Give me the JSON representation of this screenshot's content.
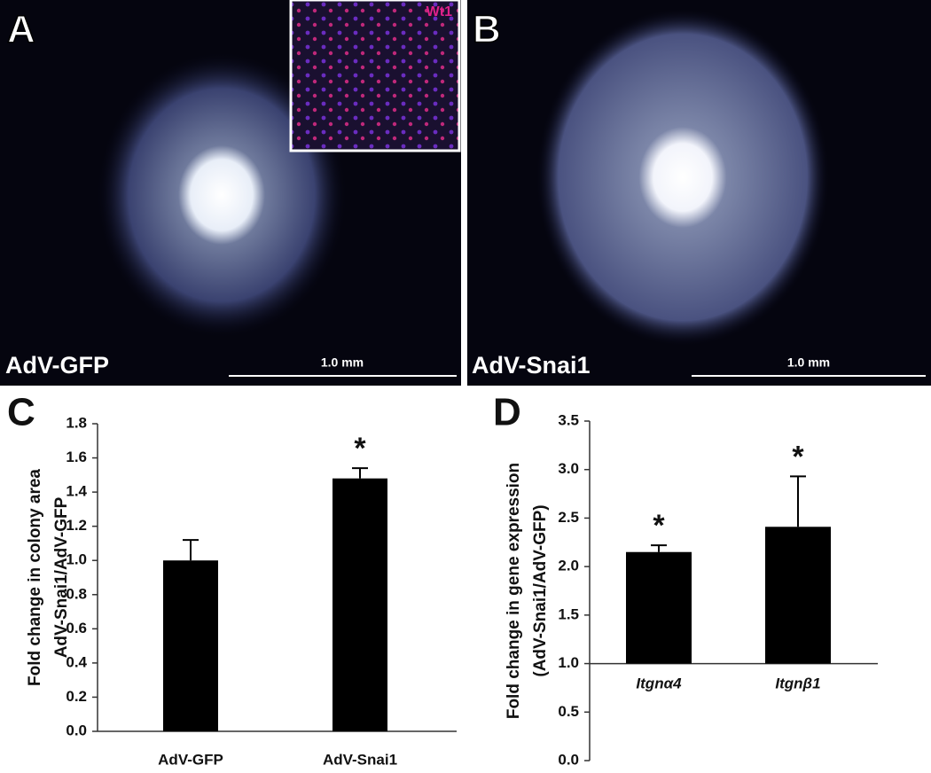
{
  "images": [
    {
      "panel": "A",
      "caption": "AdV-GFP",
      "scale_bar": "1.0 mm",
      "inset_label": "Wt1"
    },
    {
      "panel": "B",
      "caption": "AdV-Snai1",
      "scale_bar": "1.0 mm"
    }
  ],
  "chart_data": [
    {
      "type": "bar",
      "panel": "C",
      "ylabel": [
        "Fold change in colony area",
        "AdV-Snai1/AdV-GFP"
      ],
      "categories": [
        "AdV-GFP",
        "AdV-Snai1"
      ],
      "values": [
        1.0,
        1.48
      ],
      "errors": [
        0.12,
        0.06
      ],
      "significance": [
        null,
        "*"
      ],
      "color": "#000000",
      "baseline": 0,
      "ylim": [
        0,
        1.8
      ],
      "yticks": [
        {
          "value": 0,
          "label": "0.0"
        },
        0.2,
        0.4,
        0.6,
        0.8,
        {
          "value": 1,
          "label": "1.0"
        },
        1.2,
        1.4,
        1.6,
        1.8
      ]
    },
    {
      "type": "bar",
      "panel": "D",
      "ylabel": [
        "Fold change in gene expression",
        "(AdV-Snai1/AdV-GFP)"
      ],
      "categories": [
        "Itgnα4",
        "Itgnβ1"
      ],
      "italic_categories": true,
      "values": [
        2.15,
        2.41
      ],
      "errors": [
        0.07,
        0.52
      ],
      "significance": [
        "*",
        "*"
      ],
      "color": "#000000",
      "baseline": 1,
      "ylim": [
        0,
        3.5
      ],
      "yticks": [
        {
          "value": 0,
          "label": "0.0"
        },
        0.5,
        {
          "value": 1,
          "label": "1.0"
        },
        1.5,
        {
          "value": 2,
          "label": "2.0"
        },
        2.5,
        {
          "value": 3,
          "label": "3.0"
        },
        3.5
      ]
    }
  ]
}
